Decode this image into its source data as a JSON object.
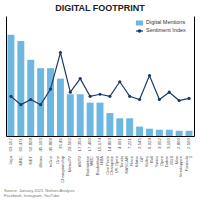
{
  "chart_data": {
    "type": "bar",
    "title": "DIGITAL FOOTPRINT",
    "categories": [
      "Jago",
      "MNC",
      "NET",
      "iNews",
      "tvOne",
      "One\nChampionship",
      "MetroTV",
      "ANTV",
      "Badminton\nWBC",
      "Basketball\nNBA",
      "One Pride\nChampion",
      "US Open\nTennis",
      "NASCAR\nRace",
      "Motor\nGP",
      "Volley\nBall",
      "Swiss\nOpen",
      "Dakar\n2020",
      "Max\nVerstappen",
      "Formula\n1"
    ],
    "x_numbers": [
      "63,157",
      "60,471",
      "50,828",
      "45,103",
      "45,869",
      "35,46",
      "29,502",
      "17,350",
      "17,400",
      "15,174",
      "14,803",
      "4,001",
      "7,221",
      "3,545",
      "6,024",
      "3,052",
      "3,100",
      "2,800",
      "2,500"
    ],
    "series": [
      {
        "name": "Digital Mentions",
        "type": "bar",
        "color": "#6CB8E0",
        "values": [
          97,
          91,
          73,
          65,
          65,
          55,
          40,
          40,
          32,
          32,
          22,
          17,
          17,
          9,
          7,
          6,
          6,
          5,
          5
        ]
      },
      {
        "name": "Sentiment Index",
        "type": "line",
        "axis": "y2",
        "marker": "circle",
        "color": "#1B3A6B",
        "values": [
          38,
          30,
          35,
          30,
          45,
          80,
          42,
          55,
          38,
          40,
          38,
          52,
          38,
          35,
          58,
          35,
          42,
          34,
          36
        ]
      }
    ],
    "ylim": [
      0,
      115
    ],
    "yticks": [],
    "y2lim": [
      0,
      115
    ],
    "y2ticks": [],
    "tick_labels": "x",
    "grid": false,
    "legend": "top-right",
    "annotations": [
      "Source: January 2021, Nielsen Analysis\nFacebook, Instagram, YouTube"
    ]
  }
}
